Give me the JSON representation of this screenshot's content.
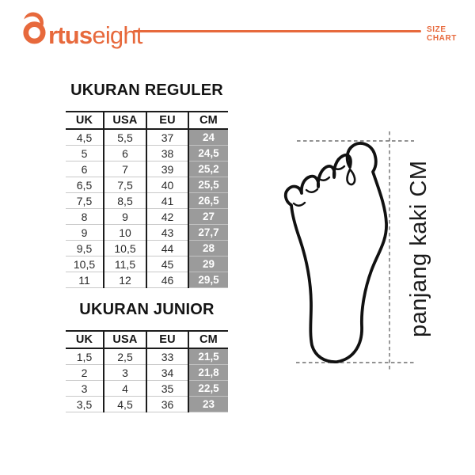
{
  "header": {
    "logo": {
      "icon": "flame-o-icon",
      "bold_part": "rtus",
      "light_part": "eight"
    },
    "label": "SIZE CHART"
  },
  "colors": {
    "accent_orange": "#E7693C",
    "cm_cell_bg": "#9B9B9B",
    "cm_cell_text": "#FFFFFF",
    "table_line": "#1C1C1C",
    "row_separator": "#C9C9C9"
  },
  "tables": [
    {
      "title": "UKURAN REGULER",
      "headers": [
        "UK",
        "USA",
        "EU",
        "CM"
      ],
      "rows": [
        [
          "4,5",
          "5,5",
          "37",
          "24"
        ],
        [
          "5",
          "6",
          "38",
          "24,5"
        ],
        [
          "6",
          "7",
          "39",
          "25,2"
        ],
        [
          "6,5",
          "7,5",
          "40",
          "25,5"
        ],
        [
          "7,5",
          "8,5",
          "41",
          "26,5"
        ],
        [
          "8",
          "9",
          "42",
          "27"
        ],
        [
          "9",
          "10",
          "43",
          "27,7"
        ],
        [
          "9,5",
          "10,5",
          "44",
          "28"
        ],
        [
          "10,5",
          "11,5",
          "45",
          "29"
        ],
        [
          "11",
          "12",
          "46",
          "29,5"
        ]
      ]
    },
    {
      "title": "UKURAN JUNIOR",
      "headers": [
        "UK",
        "USA",
        "EU",
        "CM"
      ],
      "rows": [
        [
          "1,5",
          "2,5",
          "33",
          "21,5"
        ],
        [
          "2",
          "3",
          "34",
          "21,8"
        ],
        [
          "3",
          "4",
          "35",
          "22,5"
        ],
        [
          "3,5",
          "4,5",
          "36",
          "23"
        ]
      ]
    }
  ],
  "foot_diagram": {
    "label": "panjang kaki CM"
  }
}
